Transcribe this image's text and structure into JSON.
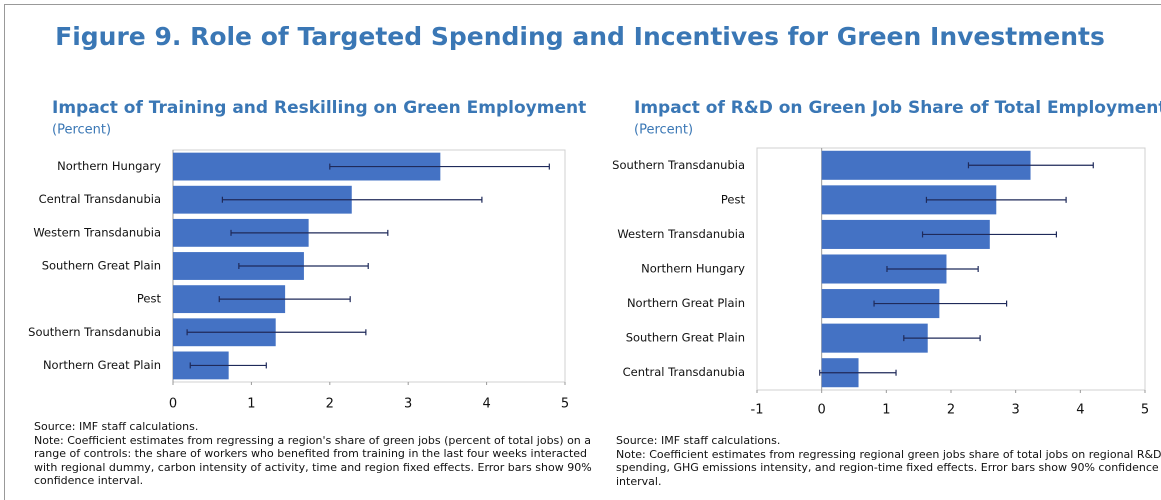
{
  "title": "Figure 9. Role of Targeted Spending and Incentives for Green Investments",
  "chart_data": [
    {
      "type": "bar",
      "orientation": "horizontal",
      "title": "Impact of Training and Reskilling on Green Employment",
      "subtitle": "(Percent)",
      "categories": [
        "Northern Hungary",
        "Central Transdanubia",
        "Western Transdanubia",
        "Southern Great Plain",
        "Pest",
        "Southern Transdanubia",
        "Northern Great Plain"
      ],
      "values": [
        3.41,
        2.28,
        1.73,
        1.67,
        1.43,
        1.31,
        0.71
      ],
      "ci_low": [
        2.0,
        0.63,
        0.74,
        0.84,
        0.59,
        0.18,
        0.22
      ],
      "ci_high": [
        4.8,
        3.94,
        2.74,
        2.49,
        2.26,
        2.46,
        1.19
      ],
      "color": "#4472c4",
      "error_color": "#1f2a5a",
      "xlim": [
        0,
        5
      ],
      "xticks": [
        0,
        1,
        2,
        3,
        4,
        5
      ],
      "source": "Source: IMF staff calculations.",
      "note": "Note: Coefficient estimates from regressing a region's share of green jobs (percent of total jobs) on a range of controls: the share of workers who benefited from training in the last four weeks interacted with regional dummy, carbon intensity of activity, time and region fixed effects. Error bars show 90% confidence interval."
    },
    {
      "type": "bar",
      "orientation": "horizontal",
      "title": "Impact of R&D on Green Job Share of Total Employment",
      "subtitle": "(Percent)",
      "categories": [
        "Southern Transdanubia",
        "Pest",
        "Western Transdanubia",
        "Northern Hungary",
        "Northern Great Plain",
        "Southern Great Plain",
        "Central Transdanubia"
      ],
      "values": [
        3.23,
        2.7,
        2.6,
        1.93,
        1.82,
        1.64,
        0.57
      ],
      "ci_low": [
        2.27,
        1.62,
        1.56,
        1.01,
        0.81,
        1.27,
        -0.03
      ],
      "ci_high": [
        4.2,
        3.78,
        3.63,
        2.42,
        2.86,
        2.45,
        1.15
      ],
      "color": "#4472c4",
      "error_color": "#1f2a5a",
      "xlim": [
        -1,
        5
      ],
      "xticks": [
        -1,
        0,
        1,
        2,
        3,
        4,
        5
      ],
      "source": "Source: IMF staff calculations.",
      "note": "Note: Coefficient estimates from regressing regional green jobs share of total jobs on regional R&D spending, GHG emissions intensity, and region-time fixed effects. Error bars show 90% confidence interval."
    }
  ]
}
